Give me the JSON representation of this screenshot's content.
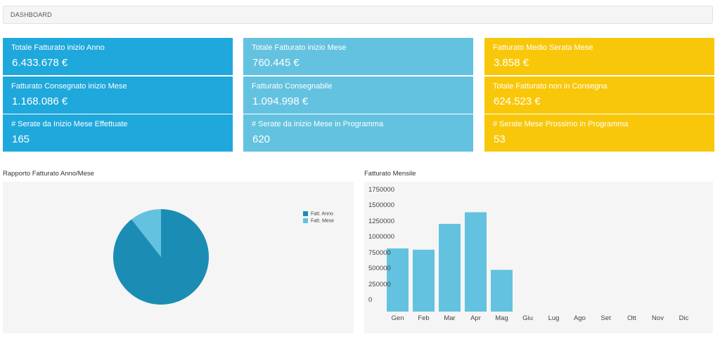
{
  "breadcrumb": "DASHBOARD",
  "tiles": {
    "col1": [
      {
        "label": "Totale Fatturato inizio Anno",
        "value": "6.433.678 €"
      },
      {
        "label": "Fatturato Consegnato inizio Mese",
        "value": "1.168.086 €"
      },
      {
        "label": "# Serate da Inizio Mese Effettuate",
        "value": "165"
      }
    ],
    "col2": [
      {
        "label": "Totale Fatturato inizio Mese",
        "value": "760.445 €"
      },
      {
        "label": "Fatturato Consegnabile",
        "value": "1.094.998 €"
      },
      {
        "label": "# Serate da inizio Mese in Programma",
        "value": "620"
      }
    ],
    "col3": [
      {
        "label": "Fatturato Medio Serata Mese",
        "value": "3.858 €"
      },
      {
        "label": "Totale Fatturato non in Consegna",
        "value": "624.523 €"
      },
      {
        "label": "# Serate Mese Prossimo in Programma",
        "value": "53"
      }
    ]
  },
  "colors": {
    "tile_blue": "#1fa8dc",
    "tile_light_blue": "#63c2df",
    "tile_yellow": "#f9c70a",
    "pie_anno": "#1b8db5",
    "pie_mese": "#63c2df",
    "bar": "#63c2df"
  },
  "pie_panel": {
    "title": "Rapporto Fatturato Anno/Mese"
  },
  "bar_panel": {
    "title": "Fatturato Mensile"
  },
  "chart_data": [
    {
      "type": "pie",
      "title": "Rapporto Fatturato Anno/Mese",
      "labels": [
        "Fatt. Anno",
        "Fatt. Mese"
      ],
      "values": [
        6433678,
        760445
      ],
      "legend": "right"
    },
    {
      "type": "bar",
      "title": "Fatturato Mensile",
      "categories": [
        "Gen",
        "Feb",
        "Mar",
        "Apr",
        "Mag",
        "Giu",
        "Lug",
        "Ago",
        "Set",
        "Ott",
        "Nov",
        "Dic"
      ],
      "values": [
        825000,
        805000,
        1215000,
        1400000,
        485000,
        0,
        0,
        0,
        0,
        0,
        0,
        0
      ],
      "yticks": [
        "0",
        "250000",
        "500000",
        "750000",
        "1000000",
        "1250000",
        "1500000",
        "1750000"
      ],
      "ylim": [
        0,
        1750000
      ],
      "grid": false
    }
  ]
}
